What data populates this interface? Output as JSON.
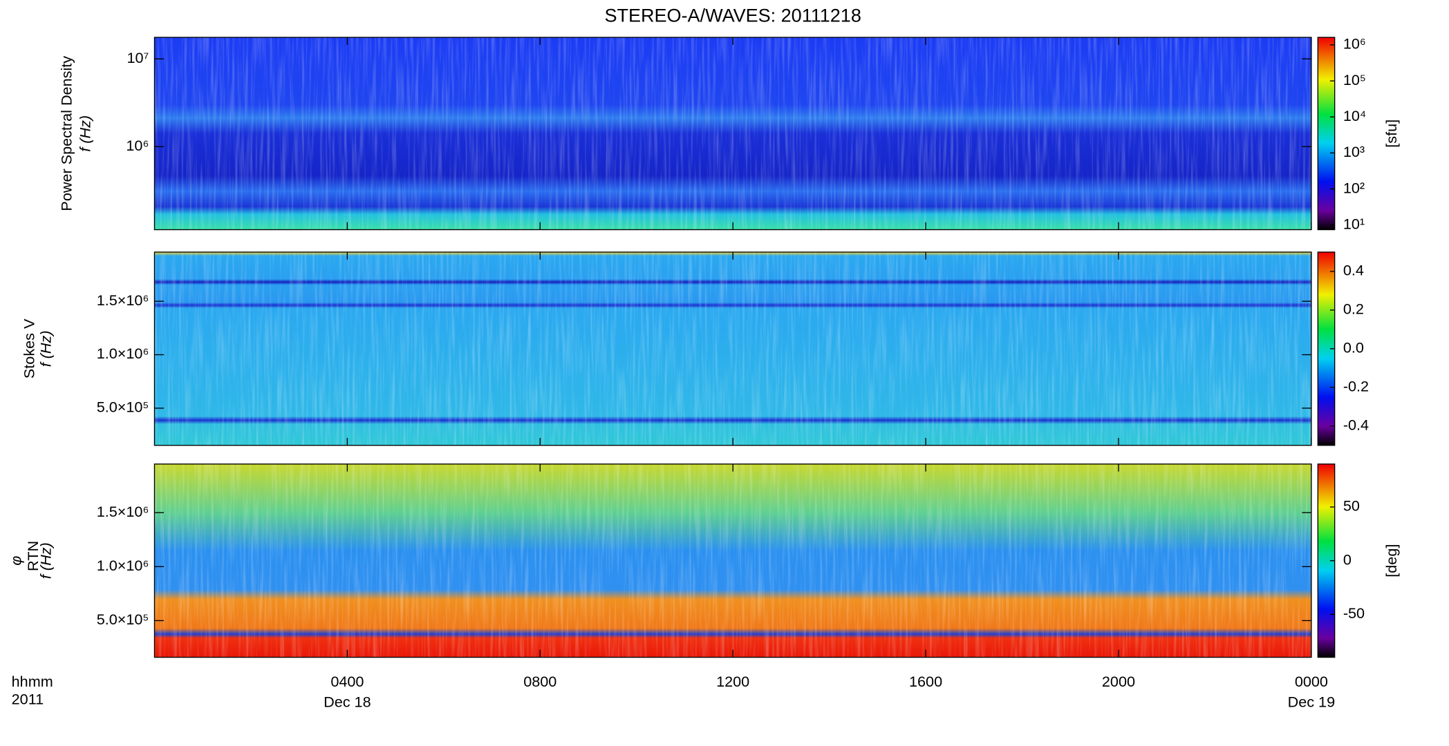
{
  "title": "STEREO-A/WAVES: 20111218",
  "x_axis": {
    "xlim": [
      0,
      24
    ],
    "xticks": [
      {
        "value": 4,
        "label": "0400"
      },
      {
        "value": 8,
        "label": "0800"
      },
      {
        "value": 12,
        "label": "1200"
      },
      {
        "value": 16,
        "label": "1600"
      },
      {
        "value": 20,
        "label": "2000"
      },
      {
        "value": 24,
        "label": "0000"
      }
    ],
    "date_labels": [
      {
        "value": 4,
        "label": "Dec 18"
      },
      {
        "value": 24,
        "label": "Dec 19"
      }
    ],
    "time_format_label": "hhmm",
    "year_label": "2011"
  },
  "chart_data": [
    {
      "type": "heatmap",
      "ylabel": [
        "Power Spectral Density",
        "f (Hz)"
      ],
      "ylog": true,
      "ylim": [
        113000,
        17600000
      ],
      "yticks": [
        {
          "value": 1000000,
          "label": "10⁶"
        },
        {
          "value": 10000000,
          "label": "10⁷"
        }
      ],
      "colorbar": {
        "label": "[sfu]",
        "log": true,
        "lim": [
          7.4,
          1620000
        ],
        "ticks": [
          {
            "value": 10,
            "label": "10¹"
          },
          {
            "value": 100,
            "label": "10²"
          },
          {
            "value": 1000,
            "label": "10³"
          },
          {
            "value": 10000,
            "label": "10⁴"
          },
          {
            "value": 100000,
            "label": "10⁵"
          },
          {
            "value": 1000000,
            "label": "10⁶"
          }
        ]
      }
    },
    {
      "type": "heatmap",
      "ylabel": [
        "Stokes V",
        "f (Hz)"
      ],
      "ylog": false,
      "ylim": [
        152000,
        1960000
      ],
      "yticks": [
        {
          "value": 500000,
          "label": "5.0×10⁵"
        },
        {
          "value": 1000000,
          "label": "1.0×10⁶"
        },
        {
          "value": 1500000,
          "label": "1.5×10⁶"
        }
      ],
      "colorbar": {
        "log": false,
        "lim": [
          -0.5,
          0.5
        ],
        "ticks": [
          0.4,
          0.2,
          {
            "value": 0,
            "label": "0.0"
          },
          -0.2,
          -0.4
        ]
      }
    },
    {
      "type": "heatmap",
      "ylabel": [
        "φ",
        "f (Hz)"
      ],
      "ylabel_subscript": "RTN",
      "ylog": false,
      "ylim": [
        160000,
        1950000
      ],
      "yticks": [
        {
          "value": 500000,
          "label": "5.0×10⁵"
        },
        {
          "value": 1000000,
          "label": "1.0×10⁶"
        },
        {
          "value": 1500000,
          "label": "1.5×10⁶"
        }
      ],
      "colorbar": {
        "label": "[deg]",
        "log": false,
        "lim": [
          -90,
          90
        ],
        "ticks": [
          50,
          0,
          -50
        ]
      }
    }
  ]
}
